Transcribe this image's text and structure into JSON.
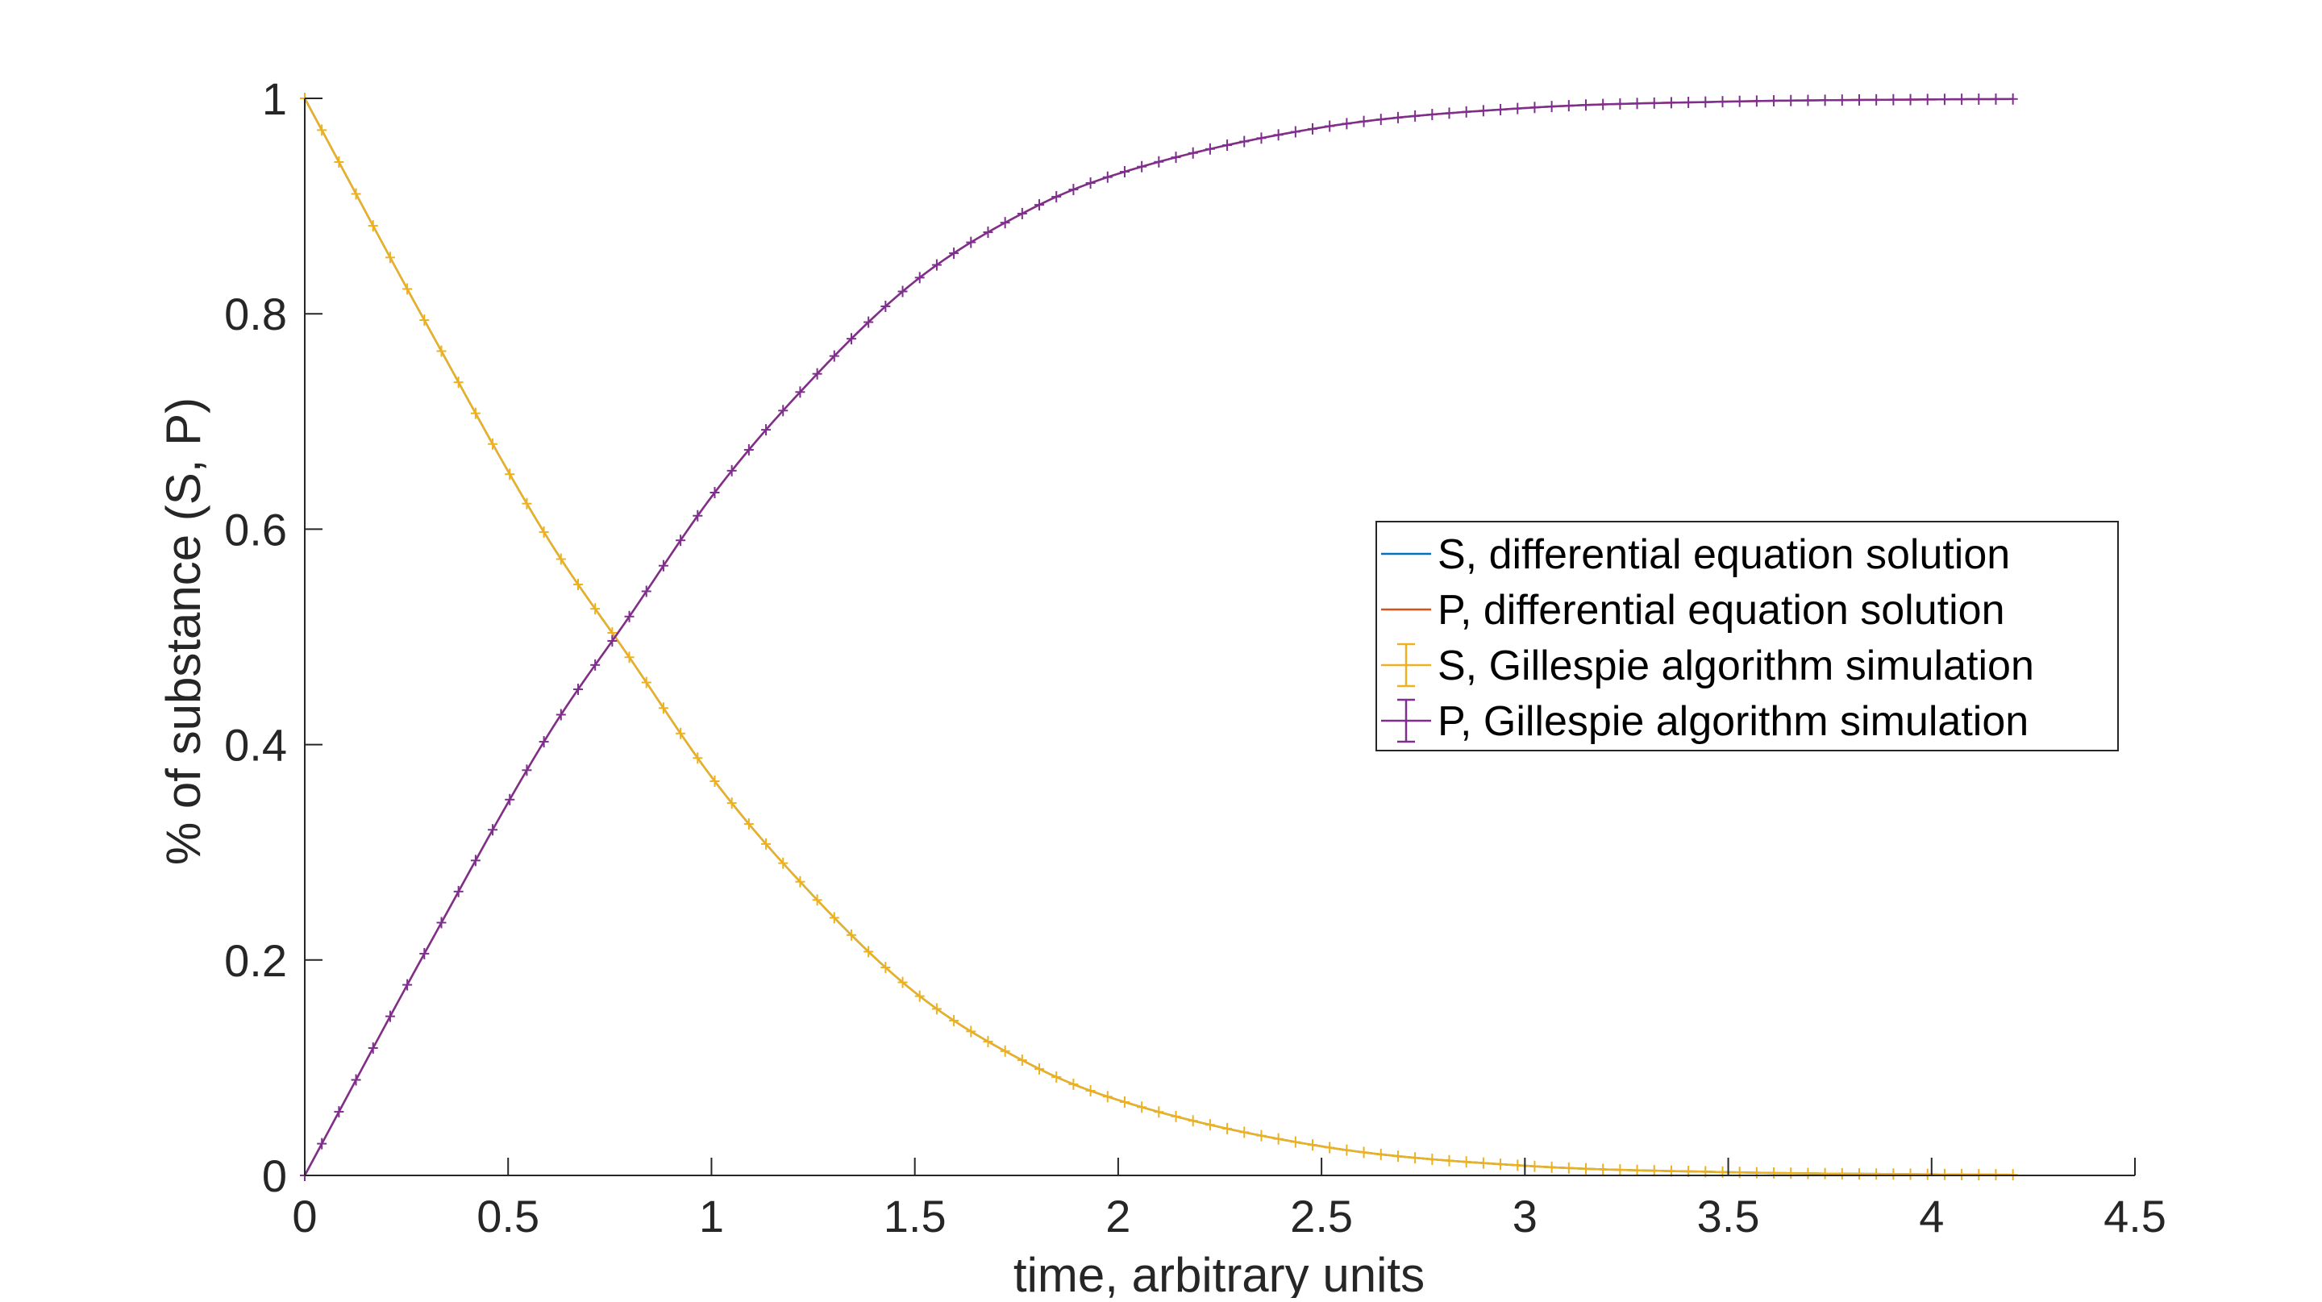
{
  "chart_data": {
    "type": "line",
    "title": "",
    "xlabel": "time, arbitrary units",
    "ylabel": "% of substance (S, P)",
    "xlim": [
      0,
      4.5
    ],
    "ylim": [
      0,
      1
    ],
    "xticks": [
      0,
      0.5,
      1,
      1.5,
      2,
      2.5,
      3,
      3.5,
      4,
      4.5
    ],
    "xtick_labels": [
      "0",
      "0.5",
      "1",
      "1.5",
      "2",
      "2.5",
      "3",
      "3.5",
      "4",
      "4.5"
    ],
    "yticks": [
      0,
      0.2,
      0.4,
      0.6,
      0.8,
      1
    ],
    "ytick_labels": [
      "0",
      "0.2",
      "0.4",
      "0.6",
      "0.8",
      "1"
    ],
    "grid": false,
    "legend_placement": "center-right",
    "x": [
      0,
      0.3,
      0.6,
      0.8,
      1.0,
      1.2,
      1.5,
      1.8,
      2.0,
      2.5,
      3.0,
      3.5,
      4.0,
      4.2
    ],
    "series": [
      {
        "name": "S, differential equation solution",
        "color": "#0072BD",
        "marker": "none",
        "values": [
          1,
          0.79,
          0.59,
          0.48,
          0.37,
          0.28,
          0.17,
          0.1,
          0.07,
          0.027,
          0.009,
          0.003,
          0.001,
          0.0006
        ]
      },
      {
        "name": "P, differential equation solution",
        "color": "#D95319",
        "marker": "none",
        "values": [
          0,
          0.21,
          0.41,
          0.52,
          0.63,
          0.72,
          0.83,
          0.9,
          0.93,
          0.973,
          0.991,
          0.997,
          0.999,
          0.9994
        ]
      },
      {
        "name": "S, Gillespie algorithm simulation",
        "color": "#EDB120",
        "marker": "errorbar",
        "values": [
          1,
          0.79,
          0.59,
          0.48,
          0.37,
          0.28,
          0.17,
          0.1,
          0.07,
          0.027,
          0.009,
          0.003,
          0.001,
          0.0006
        ]
      },
      {
        "name": "P, Gillespie algorithm simulation",
        "color": "#7E2F8E",
        "marker": "errorbar",
        "values": [
          0,
          0.21,
          0.41,
          0.52,
          0.63,
          0.72,
          0.83,
          0.9,
          0.93,
          0.973,
          0.991,
          0.997,
          0.999,
          0.9994
        ]
      }
    ]
  }
}
